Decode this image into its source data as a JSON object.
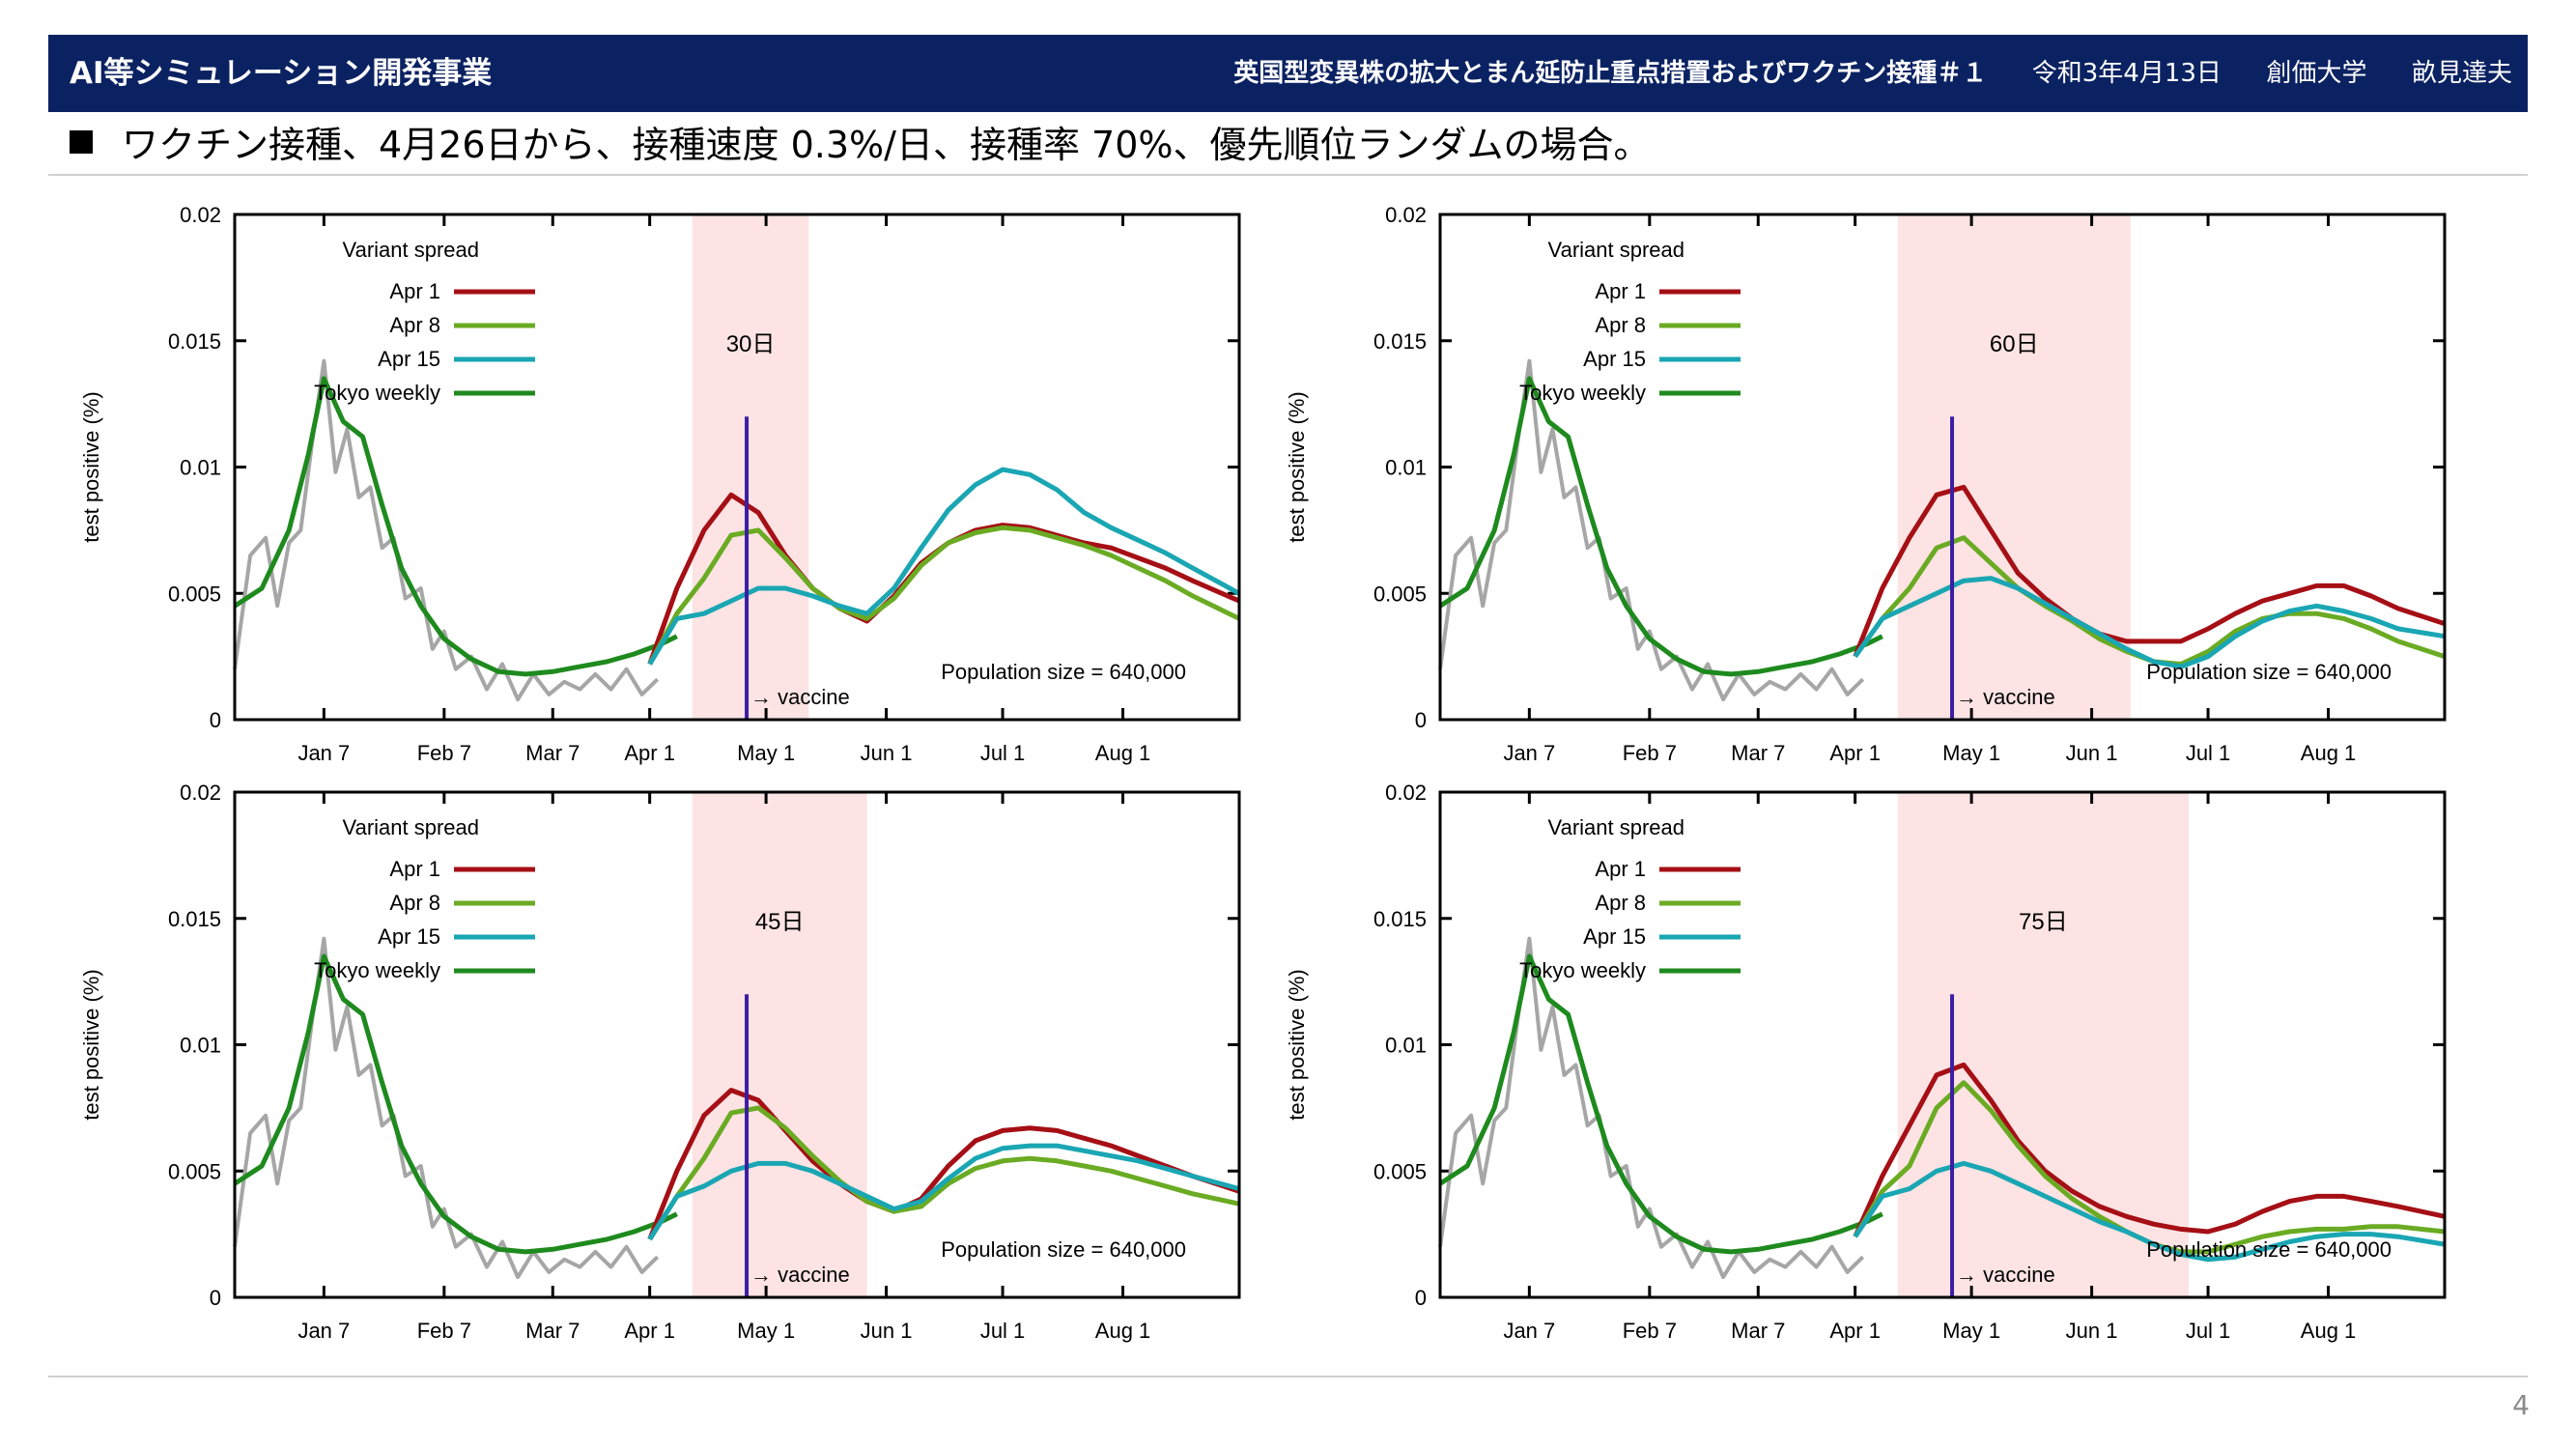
{
  "header": {
    "title": "AI等シミュレーション開発事業",
    "subtitle": "英国型変異株の拡大とまん延防止重点措置およびワクチン接種＃１",
    "date": "令和3年4月13日",
    "affiliation": "創価大学",
    "author": "畝見達夫"
  },
  "bullet_text": "ワクチン接種、4月26日から、接種速度 0.3%/日、接種率 70%、優先順位ランダムの場合。",
  "page_number": "4",
  "colors": {
    "header_bg": "#0b2262",
    "apr1": "#a50f15",
    "apr8": "#6aab23",
    "apr15": "#1aa6b3",
    "tokyo_weekly": "#1e8a1e",
    "daily_gray": "#a6a6a6",
    "vaccine_line": "#3b1ea3",
    "shade": "#fde3e3"
  },
  "chart_data": [
    {
      "type": "line",
      "panel_label": "30日",
      "ylabel": "test positive (%)",
      "yticks": [
        "0",
        "0.005",
        "0.01",
        "0.015",
        "0.02"
      ],
      "ylim": [
        0,
        0.02
      ],
      "xticks": [
        "Jan 7",
        "Feb 7",
        "Mar 7",
        "Apr 1",
        "May 1",
        "Jun 1",
        "Jul 1",
        "Aug 1"
      ],
      "shaded_range": [
        "Apr 12",
        "May 12"
      ],
      "vaccine_start": "Apr 26",
      "vaccine_label": "→ vaccine",
      "population_label": "Population size = 640,000",
      "legend_title": "Variant spread",
      "legend": [
        "Apr 1",
        "Apr 8",
        "Apr 15",
        "Tokyo weekly"
      ],
      "series": [
        {
          "name": "Apr 1",
          "x": [
            "Apr 1",
            "Apr 8",
            "Apr 15",
            "Apr 22",
            "Apr 29",
            "May 6",
            "May 13",
            "May 20",
            "May 27",
            "Jun 3",
            "Jun 10",
            "Jun 17",
            "Jun 24",
            "Jul 1",
            "Jul 8",
            "Jul 15",
            "Jul 22",
            "Jul 29",
            "Aug 5",
            "Aug 12",
            "Aug 19",
            "Aug 31"
          ],
          "y": [
            0.0022,
            0.0052,
            0.0075,
            0.0089,
            0.0082,
            0.0065,
            0.0052,
            0.0044,
            0.0039,
            0.0049,
            0.0062,
            0.007,
            0.0075,
            0.0077,
            0.0076,
            0.0073,
            0.007,
            0.0068,
            0.0064,
            0.006,
            0.0055,
            0.0047
          ]
        },
        {
          "name": "Apr 8",
          "x": [
            "Apr 1",
            "Apr 8",
            "Apr 15",
            "Apr 22",
            "Apr 29",
            "May 6",
            "May 13",
            "May 20",
            "May 27",
            "Jun 3",
            "Jun 10",
            "Jun 17",
            "Jun 24",
            "Jul 1",
            "Jul 8",
            "Jul 15",
            "Jul 22",
            "Jul 29",
            "Aug 5",
            "Aug 12",
            "Aug 19",
            "Aug 31"
          ],
          "y": [
            0.0022,
            0.0042,
            0.0056,
            0.0073,
            0.0075,
            0.0064,
            0.0052,
            0.0044,
            0.004,
            0.0048,
            0.0061,
            0.007,
            0.0074,
            0.0076,
            0.0075,
            0.0072,
            0.0069,
            0.0065,
            0.006,
            0.0055,
            0.0049,
            0.004
          ]
        },
        {
          "name": "Apr 15",
          "x": [
            "Apr 1",
            "Apr 8",
            "Apr 15",
            "Apr 22",
            "Apr 29",
            "May 6",
            "May 13",
            "May 20",
            "May 27",
            "Jun 3",
            "Jun 10",
            "Jun 17",
            "Jun 24",
            "Jul 1",
            "Jul 8",
            "Jul 15",
            "Jul 22",
            "Jul 29",
            "Aug 5",
            "Aug 12",
            "Aug 19",
            "Aug 31"
          ],
          "y": [
            0.0022,
            0.004,
            0.0042,
            0.0047,
            0.0052,
            0.0052,
            0.0049,
            0.0045,
            0.0042,
            0.0052,
            0.0068,
            0.0083,
            0.0093,
            0.0099,
            0.0097,
            0.0091,
            0.0082,
            0.0076,
            0.0071,
            0.0066,
            0.006,
            0.005
          ]
        }
      ]
    },
    {
      "type": "line",
      "panel_label": "60日",
      "ylabel": "test positive (%)",
      "yticks": [
        "0",
        "0.005",
        "0.01",
        "0.015",
        "0.02"
      ],
      "ylim": [
        0,
        0.02
      ],
      "xticks": [
        "Jan 7",
        "Feb 7",
        "Mar 7",
        "Apr 1",
        "May 1",
        "Jun 1",
        "Jul 1",
        "Aug 1"
      ],
      "shaded_range": [
        "Apr 12",
        "Jun 11"
      ],
      "vaccine_start": "Apr 26",
      "vaccine_label": "→ vaccine",
      "population_label": "Population size = 640,000",
      "legend_title": "Variant spread",
      "legend": [
        "Apr 1",
        "Apr 8",
        "Apr 15",
        "Tokyo weekly"
      ],
      "series": [
        {
          "name": "Apr 1",
          "x": [
            "Apr 1",
            "Apr 8",
            "Apr 15",
            "Apr 22",
            "Apr 29",
            "May 6",
            "May 13",
            "May 20",
            "May 27",
            "Jun 3",
            "Jun 10",
            "Jun 17",
            "Jun 24",
            "Jul 1",
            "Jul 8",
            "Jul 15",
            "Jul 22",
            "Jul 29",
            "Aug 5",
            "Aug 12",
            "Aug 19",
            "Aug 31"
          ],
          "y": [
            0.0025,
            0.0052,
            0.0072,
            0.0089,
            0.0092,
            0.0075,
            0.0058,
            0.0048,
            0.004,
            0.0034,
            0.0031,
            0.0031,
            0.0031,
            0.0036,
            0.0042,
            0.0047,
            0.005,
            0.0053,
            0.0053,
            0.0049,
            0.0044,
            0.0038
          ]
        },
        {
          "name": "Apr 8",
          "x": [
            "Apr 1",
            "Apr 8",
            "Apr 15",
            "Apr 22",
            "Apr 29",
            "May 6",
            "May 13",
            "May 20",
            "May 27",
            "Jun 3",
            "Jun 10",
            "Jun 17",
            "Jun 24",
            "Jul 1",
            "Jul 8",
            "Jul 15",
            "Jul 22",
            "Jul 29",
            "Aug 5",
            "Aug 12",
            "Aug 19",
            "Aug 31"
          ],
          "y": [
            0.0025,
            0.004,
            0.0052,
            0.0068,
            0.0072,
            0.0062,
            0.0052,
            0.0045,
            0.0039,
            0.0032,
            0.0027,
            0.0023,
            0.0022,
            0.0027,
            0.0035,
            0.004,
            0.0042,
            0.0042,
            0.004,
            0.0036,
            0.0031,
            0.0025
          ]
        },
        {
          "name": "Apr 15",
          "x": [
            "Apr 1",
            "Apr 8",
            "Apr 15",
            "Apr 22",
            "Apr 29",
            "May 6",
            "May 13",
            "May 20",
            "May 27",
            "Jun 3",
            "Jun 10",
            "Jun 17",
            "Jun 24",
            "Jul 1",
            "Jul 8",
            "Jul 15",
            "Jul 22",
            "Jul 29",
            "Aug 5",
            "Aug 12",
            "Aug 19",
            "Aug 31"
          ],
          "y": [
            0.0025,
            0.004,
            0.0045,
            0.005,
            0.0055,
            0.0056,
            0.0052,
            0.0046,
            0.004,
            0.0034,
            0.0028,
            0.0023,
            0.0021,
            0.0025,
            0.0033,
            0.0039,
            0.0043,
            0.0045,
            0.0043,
            0.004,
            0.0036,
            0.0033
          ]
        }
      ]
    },
    {
      "type": "line",
      "panel_label": "45日",
      "ylabel": "test positive (%)",
      "yticks": [
        "0",
        "0.005",
        "0.01",
        "0.015",
        "0.02"
      ],
      "ylim": [
        0,
        0.02
      ],
      "xticks": [
        "Jan 7",
        "Feb 7",
        "Mar 7",
        "Apr 1",
        "May 1",
        "Jun 1",
        "Jul 1",
        "Aug 1"
      ],
      "shaded_range": [
        "Apr 12",
        "May 27"
      ],
      "vaccine_start": "Apr 26",
      "vaccine_label": "→ vaccine",
      "population_label": "Population size = 640,000",
      "legend_title": "Variant spread",
      "legend": [
        "Apr 1",
        "Apr 8",
        "Apr 15",
        "Tokyo weekly"
      ],
      "series": [
        {
          "name": "Apr 1",
          "x": [
            "Apr 1",
            "Apr 8",
            "Apr 15",
            "Apr 22",
            "Apr 29",
            "May 6",
            "May 13",
            "May 20",
            "May 27",
            "Jun 3",
            "Jun 10",
            "Jun 17",
            "Jun 24",
            "Jul 1",
            "Jul 8",
            "Jul 15",
            "Jul 22",
            "Jul 29",
            "Aug 5",
            "Aug 12",
            "Aug 19",
            "Aug 31"
          ],
          "y": [
            0.0023,
            0.005,
            0.0072,
            0.0082,
            0.0078,
            0.0066,
            0.0054,
            0.0045,
            0.0038,
            0.0034,
            0.0039,
            0.0052,
            0.0062,
            0.0066,
            0.0067,
            0.0066,
            0.0063,
            0.006,
            0.0056,
            0.0052,
            0.0048,
            0.0042
          ]
        },
        {
          "name": "Apr 8",
          "x": [
            "Apr 1",
            "Apr 8",
            "Apr 15",
            "Apr 22",
            "Apr 29",
            "May 6",
            "May 13",
            "May 20",
            "May 27",
            "Jun 3",
            "Jun 10",
            "Jun 17",
            "Jun 24",
            "Jul 1",
            "Jul 8",
            "Jul 15",
            "Jul 22",
            "Jul 29",
            "Aug 5",
            "Aug 12",
            "Aug 19",
            "Aug 31"
          ],
          "y": [
            0.0023,
            0.004,
            0.0055,
            0.0073,
            0.0075,
            0.0067,
            0.0056,
            0.0046,
            0.0038,
            0.0034,
            0.0036,
            0.0045,
            0.0051,
            0.0054,
            0.0055,
            0.0054,
            0.0052,
            0.005,
            0.0047,
            0.0044,
            0.0041,
            0.0037
          ]
        },
        {
          "name": "Apr 15",
          "x": [
            "Apr 1",
            "Apr 8",
            "Apr 15",
            "Apr 22",
            "Apr 29",
            "May 6",
            "May 13",
            "May 20",
            "May 27",
            "Jun 3",
            "Jun 10",
            "Jun 17",
            "Jun 24",
            "Jul 1",
            "Jul 8",
            "Jul 15",
            "Jul 22",
            "Jul 29",
            "Aug 5",
            "Aug 12",
            "Aug 19",
            "Aug 31"
          ],
          "y": [
            0.0023,
            0.004,
            0.0044,
            0.005,
            0.0053,
            0.0053,
            0.005,
            0.0045,
            0.004,
            0.0035,
            0.0038,
            0.0047,
            0.0055,
            0.0059,
            0.006,
            0.006,
            0.0058,
            0.0056,
            0.0054,
            0.0051,
            0.0048,
            0.0043
          ]
        }
      ]
    },
    {
      "type": "line",
      "panel_label": "75日",
      "ylabel": "test positive (%)",
      "yticks": [
        "0",
        "0.005",
        "0.01",
        "0.015",
        "0.02"
      ],
      "ylim": [
        0,
        0.02
      ],
      "xticks": [
        "Jan 7",
        "Feb 7",
        "Mar 7",
        "Apr 1",
        "May 1",
        "Jun 1",
        "Jul 1",
        "Aug 1"
      ],
      "shaded_range": [
        "Apr 12",
        "Jun 26"
      ],
      "vaccine_start": "Apr 26",
      "vaccine_label": "→ vaccine",
      "population_label": "Population size = 640,000",
      "legend_title": "Variant spread",
      "legend": [
        "Apr 1",
        "Apr 8",
        "Apr 15",
        "Tokyo weekly"
      ],
      "series": [
        {
          "name": "Apr 1",
          "x": [
            "Apr 1",
            "Apr 8",
            "Apr 15",
            "Apr 22",
            "Apr 29",
            "May 6",
            "May 13",
            "May 20",
            "May 27",
            "Jun 3",
            "Jun 10",
            "Jun 17",
            "Jun 24",
            "Jul 1",
            "Jul 8",
            "Jul 15",
            "Jul 22",
            "Jul 29",
            "Aug 5",
            "Aug 12",
            "Aug 19",
            "Aug 31"
          ],
          "y": [
            0.0024,
            0.0048,
            0.0068,
            0.0088,
            0.0092,
            0.0078,
            0.0062,
            0.005,
            0.0042,
            0.0036,
            0.0032,
            0.0029,
            0.0027,
            0.0026,
            0.0029,
            0.0034,
            0.0038,
            0.004,
            0.004,
            0.0038,
            0.0036,
            0.0032
          ]
        },
        {
          "name": "Apr 8",
          "x": [
            "Apr 1",
            "Apr 8",
            "Apr 15",
            "Apr 22",
            "Apr 29",
            "May 6",
            "May 13",
            "May 20",
            "May 27",
            "Jun 3",
            "Jun 10",
            "Jun 17",
            "Jun 24",
            "Jul 1",
            "Jul 8",
            "Jul 15",
            "Jul 22",
            "Jul 29",
            "Aug 5",
            "Aug 12",
            "Aug 19",
            "Aug 31"
          ],
          "y": [
            0.0024,
            0.0042,
            0.0052,
            0.0075,
            0.0085,
            0.0074,
            0.006,
            0.0048,
            0.0039,
            0.0032,
            0.0026,
            0.0021,
            0.0018,
            0.0018,
            0.0021,
            0.0024,
            0.0026,
            0.0027,
            0.0027,
            0.0028,
            0.0028,
            0.0026
          ]
        },
        {
          "name": "Apr 15",
          "x": [
            "Apr 1",
            "Apr 8",
            "Apr 15",
            "Apr 22",
            "Apr 29",
            "May 6",
            "May 13",
            "May 20",
            "May 27",
            "Jun 3",
            "Jun 10",
            "Jun 17",
            "Jun 24",
            "Jul 1",
            "Jul 8",
            "Jul 15",
            "Jul 22",
            "Jul 29",
            "Aug 5",
            "Aug 12",
            "Aug 19",
            "Aug 31"
          ],
          "y": [
            0.0024,
            0.004,
            0.0043,
            0.005,
            0.0053,
            0.005,
            0.0045,
            0.004,
            0.0035,
            0.003,
            0.0026,
            0.0021,
            0.0017,
            0.0015,
            0.0016,
            0.0019,
            0.0022,
            0.0024,
            0.0025,
            0.0025,
            0.0024,
            0.0021
          ]
        }
      ]
    }
  ],
  "shared_series": {
    "tokyo_weekly": {
      "name": "Tokyo weekly",
      "x": [
        "Dec 15",
        "Dec 22",
        "Dec 29",
        "Jan 3",
        "Jan 7",
        "Jan 12",
        "Jan 17",
        "Jan 22",
        "Jan 27",
        "Feb 1",
        "Feb 7",
        "Feb 14",
        "Feb 21",
        "Feb 28",
        "Mar 7",
        "Mar 14",
        "Mar 21",
        "Mar 28",
        "Apr 4",
        "Apr 8"
      ],
      "y": [
        0.0045,
        0.0052,
        0.0075,
        0.0105,
        0.0135,
        0.0118,
        0.0112,
        0.0085,
        0.006,
        0.0045,
        0.0032,
        0.0024,
        0.0019,
        0.0018,
        0.0019,
        0.0021,
        0.0023,
        0.0026,
        0.003,
        0.0033
      ]
    },
    "tokyo_daily": {
      "x": [
        "Dec 15",
        "Dec 19",
        "Dec 23",
        "Dec 26",
        "Dec 29",
        "Jan 1",
        "Jan 4",
        "Jan 7",
        "Jan 10",
        "Jan 13",
        "Jan 16",
        "Jan 19",
        "Jan 22",
        "Jan 25",
        "Jan 28",
        "Feb 1",
        "Feb 4",
        "Feb 7",
        "Feb 10",
        "Feb 14",
        "Feb 18",
        "Feb 22",
        "Feb 26",
        "Mar 2",
        "Mar 6",
        "Mar 10",
        "Mar 14",
        "Mar 18",
        "Mar 22",
        "Mar 26",
        "Mar 30",
        "Apr 3"
      ],
      "y": [
        0.002,
        0.0065,
        0.0072,
        0.0045,
        0.007,
        0.0075,
        0.011,
        0.0142,
        0.0098,
        0.0115,
        0.0088,
        0.0092,
        0.0068,
        0.0072,
        0.0048,
        0.0052,
        0.0028,
        0.0035,
        0.002,
        0.0025,
        0.0012,
        0.0022,
        0.0008,
        0.0018,
        0.001,
        0.0015,
        0.0012,
        0.0018,
        0.0012,
        0.002,
        0.001,
        0.0016
      ]
    }
  }
}
